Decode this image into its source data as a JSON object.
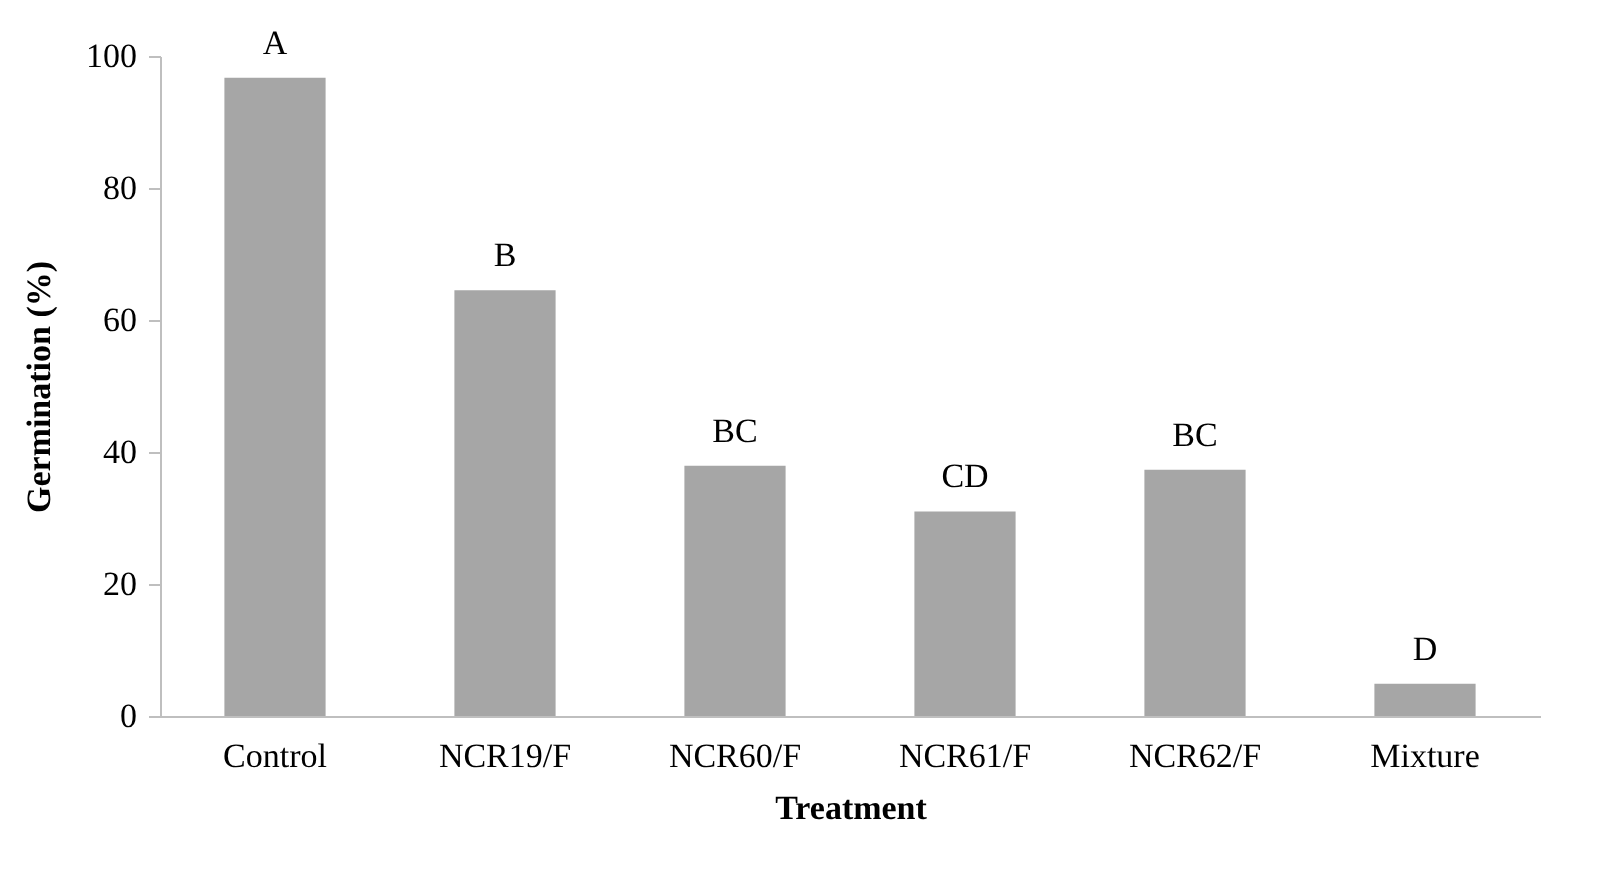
{
  "chart_data": {
    "type": "bar",
    "xlabel": "Treatment",
    "ylabel": "Germination (%)",
    "categories": [
      "Control",
      "NCR19/F",
      "NCR60/F",
      "NCR61/F",
      "NCR62/F",
      "Mixture"
    ],
    "values": [
      96.7,
      64.5,
      37.9,
      31.0,
      37.3,
      4.9
    ],
    "color": "#a6a6a6",
    "ylim": [
      0,
      100
    ],
    "yticks": [
      0,
      20,
      40,
      60,
      80,
      100
    ],
    "grid": false,
    "annotations": [
      {
        "text": "A",
        "x": "Control",
        "y": 96.7
      },
      {
        "text": "B",
        "x": "NCR19/F",
        "y": 64.5
      },
      {
        "text": "BC",
        "x": "NCR60/F",
        "y": 37.9
      },
      {
        "text": "CD",
        "x": "NCR61/F",
        "y": 31.0
      },
      {
        "text": "BC",
        "x": "NCR62/F",
        "y": 37.3
      },
      {
        "text": "D",
        "x": "Mixture",
        "y": 4.9
      }
    ]
  }
}
